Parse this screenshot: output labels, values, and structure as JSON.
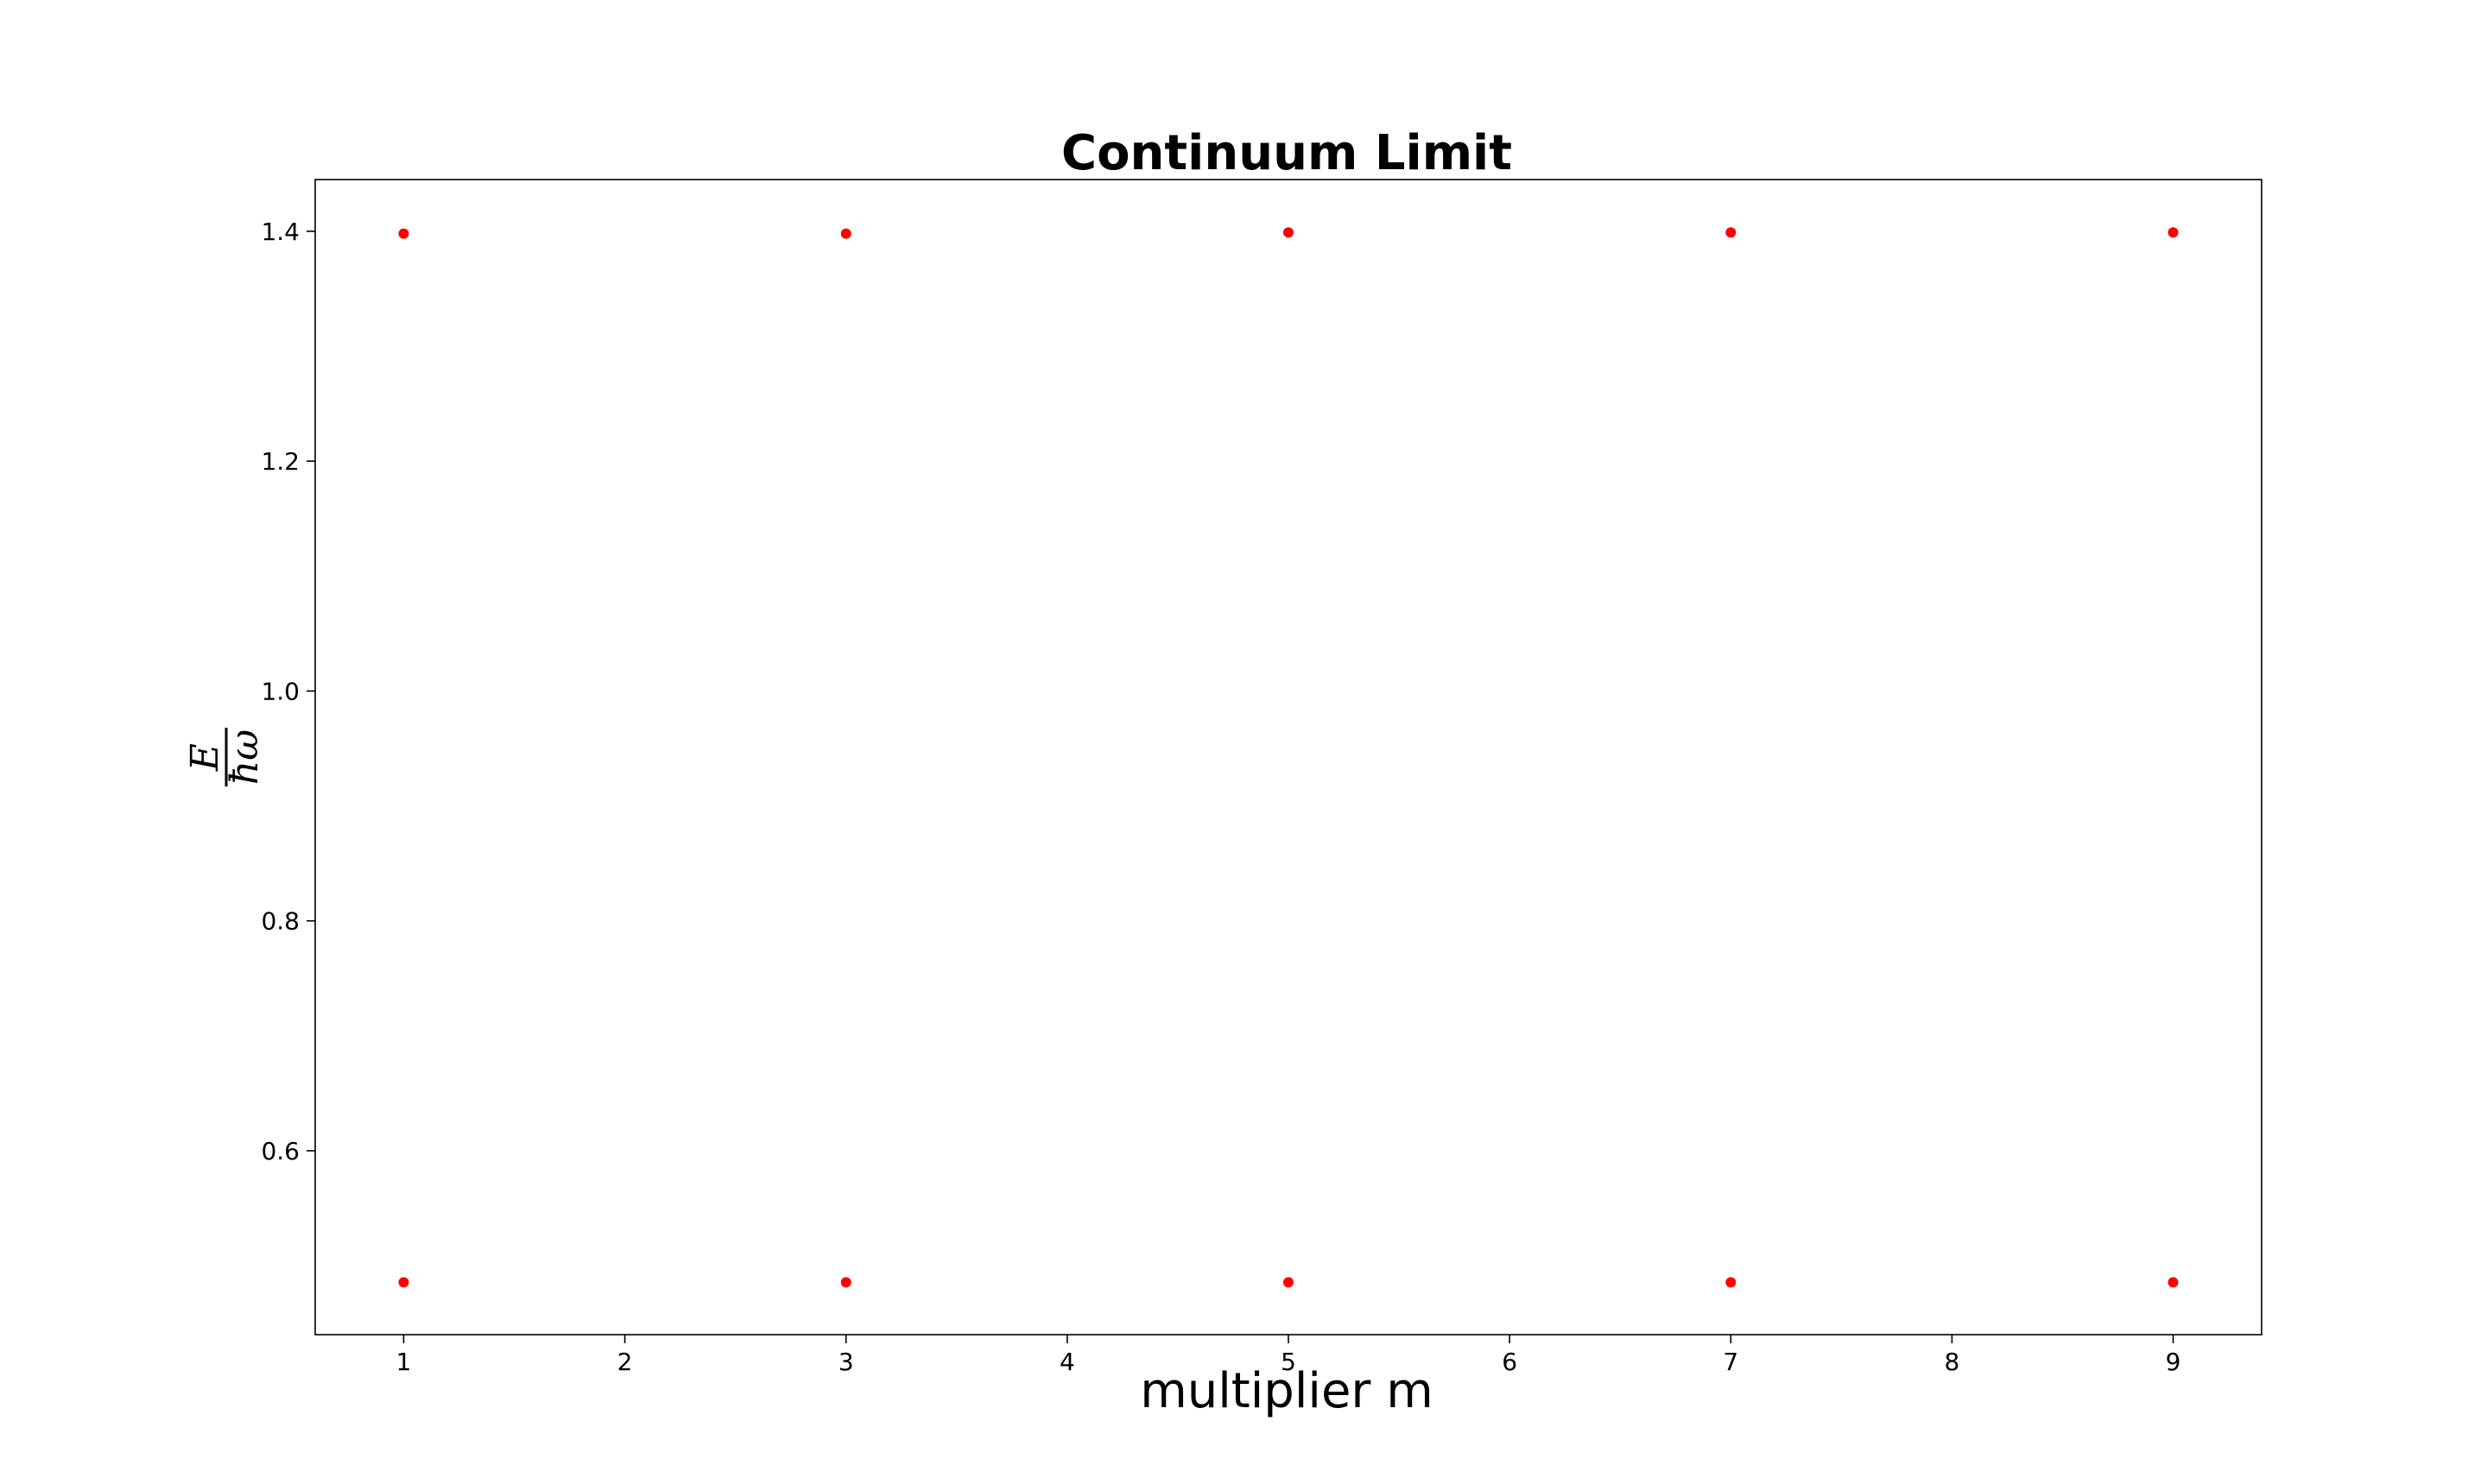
{
  "chart_data": {
    "type": "scatter",
    "title": "Continuum Limit",
    "xlabel": "multiplier m",
    "ylabel_numerator": "E",
    "ylabel_denominator": "ħω",
    "xlim": [
      0.6,
      9.4
    ],
    "ylim": [
      0.44,
      1.445
    ],
    "xticks": [
      1,
      2,
      3,
      4,
      5,
      6,
      7,
      8,
      9
    ],
    "yticks": [
      0.6,
      0.8,
      1.0,
      1.2,
      1.4
    ],
    "ytick_labels": [
      "0.6",
      "0.8",
      "1.0",
      "1.2",
      "1.4"
    ],
    "grid": false,
    "marker_color": "#ff0000",
    "series": [
      {
        "x": [
          1,
          3,
          5,
          7,
          9
        ],
        "y": [
          1.398,
          1.398,
          1.399,
          1.399,
          1.399
        ]
      },
      {
        "x": [
          1,
          3,
          5,
          7,
          9
        ],
        "y": [
          0.4855,
          0.4855,
          0.4855,
          0.4855,
          0.4855
        ]
      }
    ]
  }
}
